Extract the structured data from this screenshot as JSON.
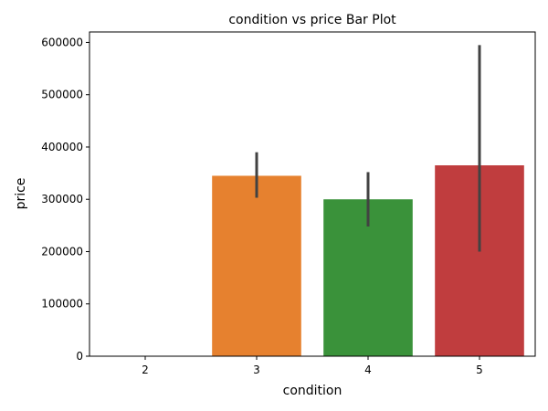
{
  "chart_data": {
    "type": "bar",
    "title": "condition vs price Bar Plot",
    "xlabel": "condition",
    "ylabel": "price",
    "categories": [
      "2",
      "3",
      "4",
      "5"
    ],
    "values": [
      0,
      345000,
      300000,
      365000
    ],
    "error_bars": [
      {
        "low": 0,
        "high": 0
      },
      {
        "low": 303000,
        "high": 390000
      },
      {
        "low": 248000,
        "high": 352000
      },
      {
        "low": 200000,
        "high": 595000
      }
    ],
    "colors": [
      "#1f77b4",
      "#e6812f",
      "#3a923a",
      "#c03d3e"
    ],
    "errorbar_color": "#424242",
    "ylim": [
      0,
      620000
    ],
    "yticks": [
      0,
      100000,
      200000,
      300000,
      400000,
      500000,
      600000
    ],
    "grid": false,
    "legend": "none"
  }
}
